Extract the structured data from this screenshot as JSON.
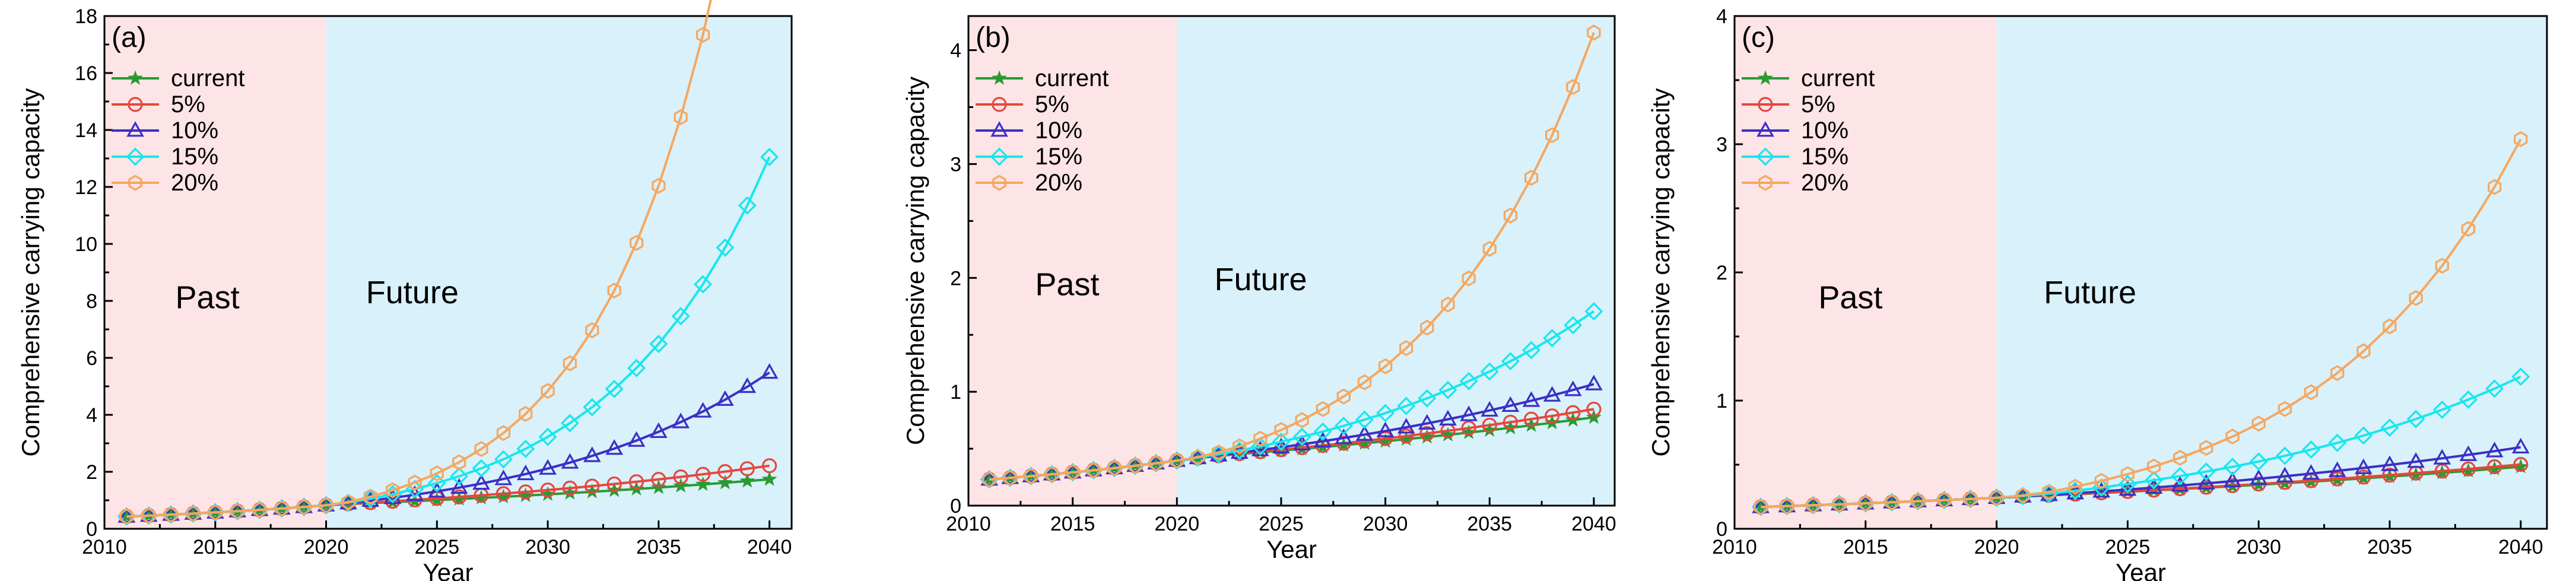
{
  "colors": {
    "past_region": "#fde4e6",
    "future_region": "#d9f1fa",
    "current": "#2a9a33",
    "5%": "#e8463c",
    "10%": "#3b2fc7",
    "15%": "#18e6ee",
    "20%": "#f6a75f"
  },
  "chart_data": [
    {
      "type": "line",
      "panel_label": "(a)",
      "xlabel": "Year",
      "ylabel": "Comprehensive carrying capacity",
      "xlim": [
        2010,
        2041
      ],
      "ylim": [
        0,
        18
      ],
      "xticks": [
        2010,
        2015,
        2020,
        2025,
        2030,
        2035,
        2040
      ],
      "yticks": [
        0,
        2,
        4,
        6,
        8,
        10,
        12,
        14,
        16,
        18
      ],
      "regions": [
        {
          "label": "Past",
          "x_start": 2010,
          "x_end": 2020
        },
        {
          "label": "Future",
          "x_start": 2020,
          "x_end": 2041
        }
      ],
      "legend": [
        "current",
        "5%",
        "10%",
        "15%",
        "20%"
      ],
      "base": {
        "start_year": 2011,
        "start_value": 0.43,
        "past_growth": 0.075,
        "ramp_years": 2
      },
      "series": [
        {
          "name": "current",
          "marker": "star",
          "growth": 0.037
        },
        {
          "name": "5%",
          "marker": "circle",
          "growth": 0.05
        },
        {
          "name": "10%",
          "marker": "triangle",
          "growth": 0.1
        },
        {
          "name": "15%",
          "marker": "diamond",
          "growth": 0.15
        },
        {
          "name": "20%",
          "marker": "hexagon",
          "growth": 0.2
        }
      ]
    },
    {
      "type": "line",
      "panel_label": "(b)",
      "xlabel": "Year",
      "ylabel": "Comprehensive carrying capacity",
      "xlim": [
        2010,
        2041
      ],
      "ylim": [
        0,
        4.3
      ],
      "xticks": [
        2010,
        2015,
        2020,
        2025,
        2030,
        2035,
        2040
      ],
      "yticks": [
        0,
        1,
        2,
        3,
        4
      ],
      "regions": [
        {
          "label": "Past",
          "x_start": 2010,
          "x_end": 2020
        },
        {
          "label": "Future",
          "x_start": 2020,
          "x_end": 2041
        }
      ],
      "legend": [
        "current",
        "5%",
        "10%",
        "15%",
        "20%"
      ],
      "base": {
        "start_year": 2011,
        "start_value": 0.23,
        "past_growth": 0.062,
        "ramp_years": 4
      },
      "series": [
        {
          "name": "current",
          "marker": "star",
          "growth": 0.032
        },
        {
          "name": "5%",
          "marker": "circle",
          "growth": 0.037
        },
        {
          "name": "10%",
          "marker": "triangle",
          "growth": 0.05
        },
        {
          "name": "15%",
          "marker": "diamond",
          "growth": 0.077
        },
        {
          "name": "20%",
          "marker": "hexagon",
          "growth": 0.13
        }
      ]
    },
    {
      "type": "line",
      "panel_label": "(c)",
      "xlabel": "Year",
      "ylabel": "Comprehensive carrying capacity",
      "xlim": [
        2010,
        2041
      ],
      "ylim": [
        0,
        4
      ],
      "xticks": [
        2010,
        2015,
        2020,
        2025,
        2030,
        2035,
        2040
      ],
      "yticks": [
        0,
        1,
        2,
        3,
        4
      ],
      "regions": [
        {
          "label": "Past",
          "x_start": 2010,
          "x_end": 2020
        },
        {
          "label": "Future",
          "x_start": 2020,
          "x_end": 2041
        }
      ],
      "legend": [
        "current",
        "5%",
        "10%",
        "15%",
        "20%"
      ],
      "base": {
        "start_year": 2011,
        "start_value": 0.17,
        "past_growth": 0.04,
        "ramp_years": 3
      },
      "series": [
        {
          "name": "current",
          "marker": "star",
          "growth": 0.035
        },
        {
          "name": "5%",
          "marker": "circle",
          "growth": 0.037
        },
        {
          "name": "10%",
          "marker": "triangle",
          "growth": 0.05
        },
        {
          "name": "15%",
          "marker": "diamond",
          "growth": 0.085
        },
        {
          "name": "20%",
          "marker": "hexagon",
          "growth": 0.14
        }
      ]
    }
  ]
}
